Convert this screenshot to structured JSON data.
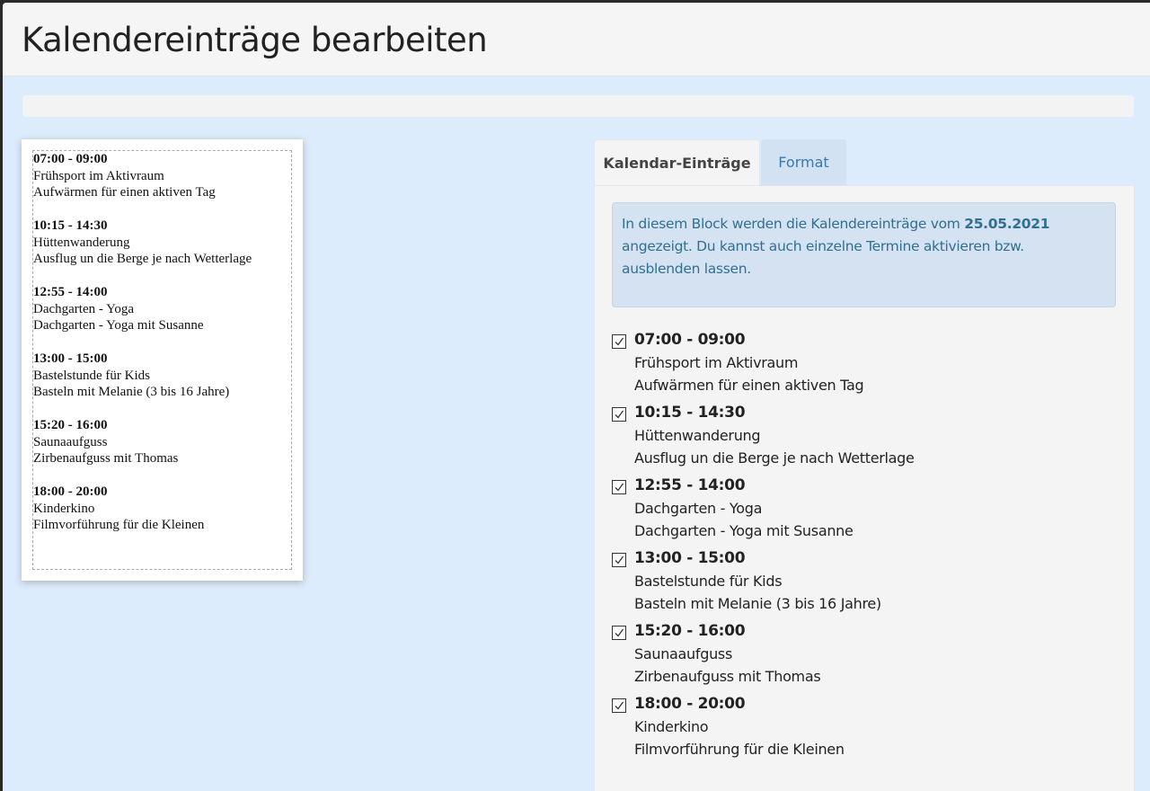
{
  "header": {
    "title": "Kalendereinträge bearbeiten"
  },
  "tabs": [
    {
      "label": "Kalendar-Einträge",
      "active": true
    },
    {
      "label": "Format",
      "active": false
    }
  ],
  "info": {
    "text_before": "In diesem Block werden die Kalendereinträge vom ",
    "date": "25.05.2021",
    "text_after": " angezeigt. Du kannst auch einzelne Termine aktivieren bzw. ausblenden lassen."
  },
  "entries": [
    {
      "time": "07:00 - 09:00",
      "title": "Frühsport im Aktivraum",
      "description": "Aufwärmen für einen aktiven Tag",
      "checked": true
    },
    {
      "time": "10:15 - 14:30",
      "title": "Hüttenwanderung",
      "description": "Ausflug un die Berge je nach Wetterlage",
      "checked": true
    },
    {
      "time": "12:55 - 14:00",
      "title": "Dachgarten - Yoga",
      "description": "Dachgarten - Yoga mit Susanne",
      "checked": true
    },
    {
      "time": "13:00 - 15:00",
      "title": "Bastelstunde für Kids",
      "description": "Basteln mit Melanie (3 bis 16 Jahre)",
      "checked": true
    },
    {
      "time": "15:20 - 16:00",
      "title": "Saunaaufguss",
      "description": "Zirbenaufguss mit Thomas",
      "checked": true
    },
    {
      "time": "18:00 - 20:00",
      "title": "Kinderkino",
      "description": "Filmvorführung für die Kleinen",
      "checked": true
    }
  ],
  "colors": {
    "accent": "#31708f",
    "background": "#ddecfc",
    "info_bg": "#d4e2f2"
  }
}
